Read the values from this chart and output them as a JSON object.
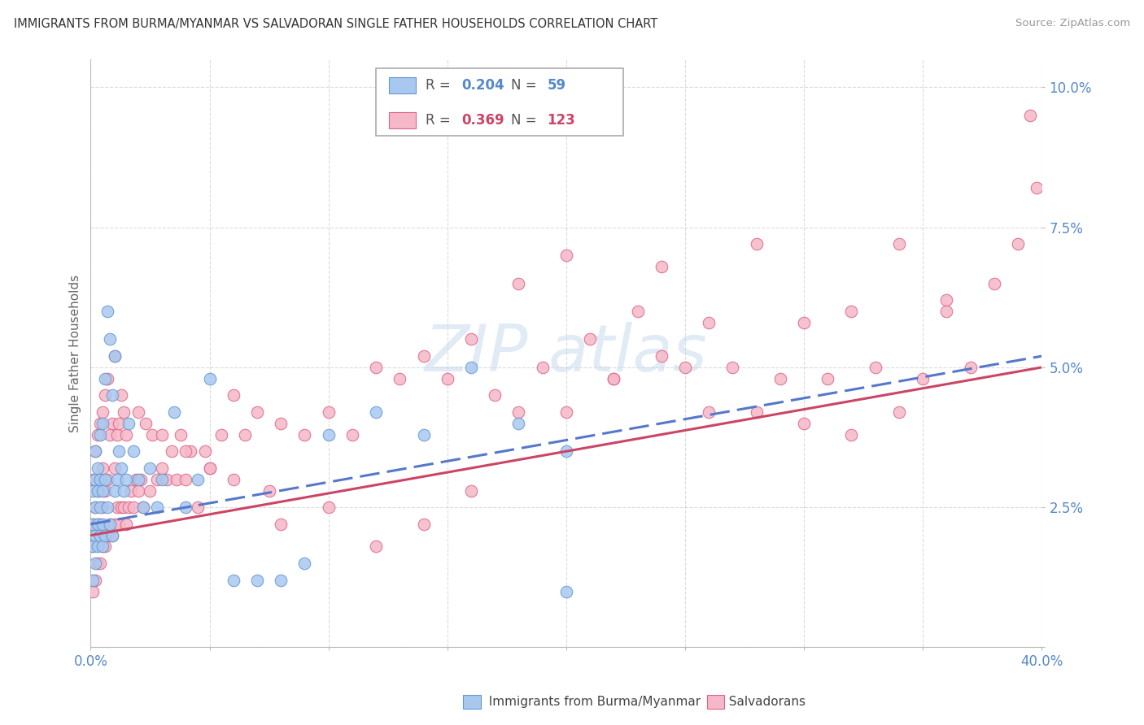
{
  "title": "IMMIGRANTS FROM BURMA/MYANMAR VS SALVADORAN SINGLE FATHER HOUSEHOLDS CORRELATION CHART",
  "source": "Source: ZipAtlas.com",
  "ylabel": "Single Father Households",
  "xlim": [
    0.0,
    0.4
  ],
  "ylim": [
    0.0,
    0.105
  ],
  "yticks": [
    0.0,
    0.025,
    0.05,
    0.075,
    0.1
  ],
  "xticks": [
    0.0,
    0.05,
    0.1,
    0.15,
    0.2,
    0.25,
    0.3,
    0.35,
    0.4
  ],
  "legend_blue_label": "Immigrants from Burma/Myanmar",
  "legend_pink_label": "Salvadorans",
  "blue_R": "0.204",
  "blue_N": "59",
  "pink_R": "0.369",
  "pink_N": "123",
  "blue_color": "#a8c8f0",
  "pink_color": "#f5b8c8",
  "blue_edge_color": "#6699cc",
  "pink_edge_color": "#dd6688",
  "blue_line_color": "#5577cc",
  "pink_line_color": "#cc4466",
  "watermark_color": "#c5d8ec",
  "blue_scatter_x": [
    0.001,
    0.001,
    0.001,
    0.001,
    0.002,
    0.002,
    0.002,
    0.002,
    0.002,
    0.003,
    0.003,
    0.003,
    0.003,
    0.004,
    0.004,
    0.004,
    0.004,
    0.005,
    0.005,
    0.005,
    0.005,
    0.006,
    0.006,
    0.006,
    0.007,
    0.007,
    0.008,
    0.008,
    0.009,
    0.009,
    0.01,
    0.01,
    0.011,
    0.012,
    0.013,
    0.014,
    0.015,
    0.016,
    0.018,
    0.02,
    0.022,
    0.025,
    0.028,
    0.03,
    0.035,
    0.04,
    0.045,
    0.05,
    0.06,
    0.07,
    0.08,
    0.09,
    0.1,
    0.12,
    0.14,
    0.16,
    0.18,
    0.2,
    0.2
  ],
  "blue_scatter_y": [
    0.012,
    0.018,
    0.022,
    0.028,
    0.015,
    0.02,
    0.025,
    0.03,
    0.035,
    0.018,
    0.022,
    0.028,
    0.032,
    0.02,
    0.025,
    0.03,
    0.038,
    0.018,
    0.022,
    0.028,
    0.04,
    0.02,
    0.03,
    0.048,
    0.025,
    0.06,
    0.022,
    0.055,
    0.02,
    0.045,
    0.028,
    0.052,
    0.03,
    0.035,
    0.032,
    0.028,
    0.03,
    0.04,
    0.035,
    0.03,
    0.025,
    0.032,
    0.025,
    0.03,
    0.042,
    0.025,
    0.03,
    0.048,
    0.012,
    0.012,
    0.012,
    0.015,
    0.038,
    0.042,
    0.038,
    0.05,
    0.04,
    0.01,
    0.035
  ],
  "pink_scatter_x": [
    0.001,
    0.001,
    0.001,
    0.001,
    0.002,
    0.002,
    0.002,
    0.002,
    0.003,
    0.003,
    0.003,
    0.003,
    0.004,
    0.004,
    0.004,
    0.004,
    0.005,
    0.005,
    0.005,
    0.005,
    0.006,
    0.006,
    0.006,
    0.007,
    0.007,
    0.007,
    0.008,
    0.008,
    0.009,
    0.009,
    0.01,
    0.01,
    0.01,
    0.011,
    0.011,
    0.012,
    0.012,
    0.013,
    0.013,
    0.014,
    0.014,
    0.015,
    0.015,
    0.016,
    0.017,
    0.018,
    0.019,
    0.02,
    0.021,
    0.022,
    0.023,
    0.025,
    0.026,
    0.028,
    0.03,
    0.032,
    0.034,
    0.036,
    0.038,
    0.04,
    0.042,
    0.045,
    0.048,
    0.05,
    0.055,
    0.06,
    0.065,
    0.07,
    0.075,
    0.08,
    0.09,
    0.1,
    0.11,
    0.12,
    0.13,
    0.14,
    0.15,
    0.16,
    0.17,
    0.18,
    0.19,
    0.2,
    0.21,
    0.22,
    0.23,
    0.24,
    0.25,
    0.26,
    0.27,
    0.28,
    0.29,
    0.3,
    0.31,
    0.32,
    0.33,
    0.34,
    0.35,
    0.36,
    0.37,
    0.38,
    0.39,
    0.395,
    0.398,
    0.02,
    0.03,
    0.04,
    0.05,
    0.06,
    0.08,
    0.1,
    0.12,
    0.14,
    0.16,
    0.18,
    0.2,
    0.22,
    0.24,
    0.26,
    0.28,
    0.3,
    0.32,
    0.34,
    0.36
  ],
  "pink_scatter_y": [
    0.01,
    0.018,
    0.022,
    0.03,
    0.012,
    0.02,
    0.025,
    0.035,
    0.015,
    0.022,
    0.028,
    0.038,
    0.015,
    0.022,
    0.03,
    0.04,
    0.018,
    0.025,
    0.032,
    0.042,
    0.018,
    0.028,
    0.045,
    0.02,
    0.03,
    0.048,
    0.022,
    0.038,
    0.02,
    0.04,
    0.022,
    0.032,
    0.052,
    0.025,
    0.038,
    0.022,
    0.04,
    0.025,
    0.045,
    0.025,
    0.042,
    0.022,
    0.038,
    0.025,
    0.028,
    0.025,
    0.03,
    0.028,
    0.03,
    0.025,
    0.04,
    0.028,
    0.038,
    0.03,
    0.032,
    0.03,
    0.035,
    0.03,
    0.038,
    0.03,
    0.035,
    0.025,
    0.035,
    0.032,
    0.038,
    0.03,
    0.038,
    0.042,
    0.028,
    0.04,
    0.038,
    0.042,
    0.038,
    0.05,
    0.048,
    0.052,
    0.048,
    0.055,
    0.045,
    0.042,
    0.05,
    0.042,
    0.055,
    0.048,
    0.06,
    0.052,
    0.05,
    0.058,
    0.05,
    0.042,
    0.048,
    0.04,
    0.048,
    0.038,
    0.05,
    0.042,
    0.048,
    0.062,
    0.05,
    0.065,
    0.072,
    0.095,
    0.082,
    0.042,
    0.038,
    0.035,
    0.032,
    0.045,
    0.022,
    0.025,
    0.018,
    0.022,
    0.028,
    0.065,
    0.07,
    0.048,
    0.068,
    0.042,
    0.072,
    0.058,
    0.06,
    0.072,
    0.06
  ]
}
